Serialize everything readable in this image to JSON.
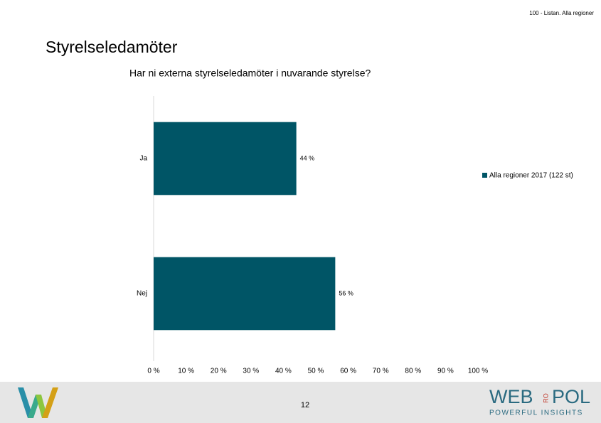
{
  "header": {
    "source": "100 - Listan. Alla regioner",
    "title": "Styrelseledamöter"
  },
  "chart_data": {
    "type": "bar",
    "orientation": "horizontal",
    "title": "Har ni externa styrelseledamöter i nuvarande styrelse?",
    "categories": [
      "Ja",
      "Nej"
    ],
    "series": [
      {
        "name": "Alla regioner 2017 (122 st)",
        "color": "#005566",
        "values": [
          44,
          56
        ],
        "value_labels": [
          "44 %",
          "56 %"
        ]
      }
    ],
    "xlim": [
      0,
      100
    ],
    "xticks": [
      {
        "value": 0,
        "label": "0 %"
      },
      {
        "value": 10,
        "label": "10 %"
      },
      {
        "value": 20,
        "label": "20 %"
      },
      {
        "value": 30,
        "label": "30 %"
      },
      {
        "value": 40,
        "label": "40 %"
      },
      {
        "value": 50,
        "label": "50 %"
      },
      {
        "value": 60,
        "label": "60 %"
      },
      {
        "value": 70,
        "label": "70 %"
      },
      {
        "value": 80,
        "label": "80 %"
      },
      {
        "value": 90,
        "label": "90 %"
      },
      {
        "value": 100,
        "label": "100 %"
      }
    ],
    "grid": false,
    "legend": "right"
  },
  "footer": {
    "page": "12",
    "logo": {
      "left": "WEB",
      "middle": "RO",
      "right": "POL",
      "tagline": "POWERFUL INSIGHTS"
    }
  }
}
